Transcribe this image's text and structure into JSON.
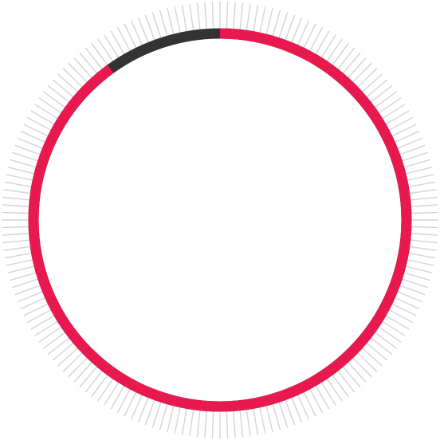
{
  "ring_indicator": {
    "progress_fraction": 0.9,
    "tick_count": 180,
    "colors": {
      "background": "#ffffff",
      "ticks": "#d4d4d4",
      "progress": "#e8194f",
      "remaining": "#333333"
    }
  }
}
